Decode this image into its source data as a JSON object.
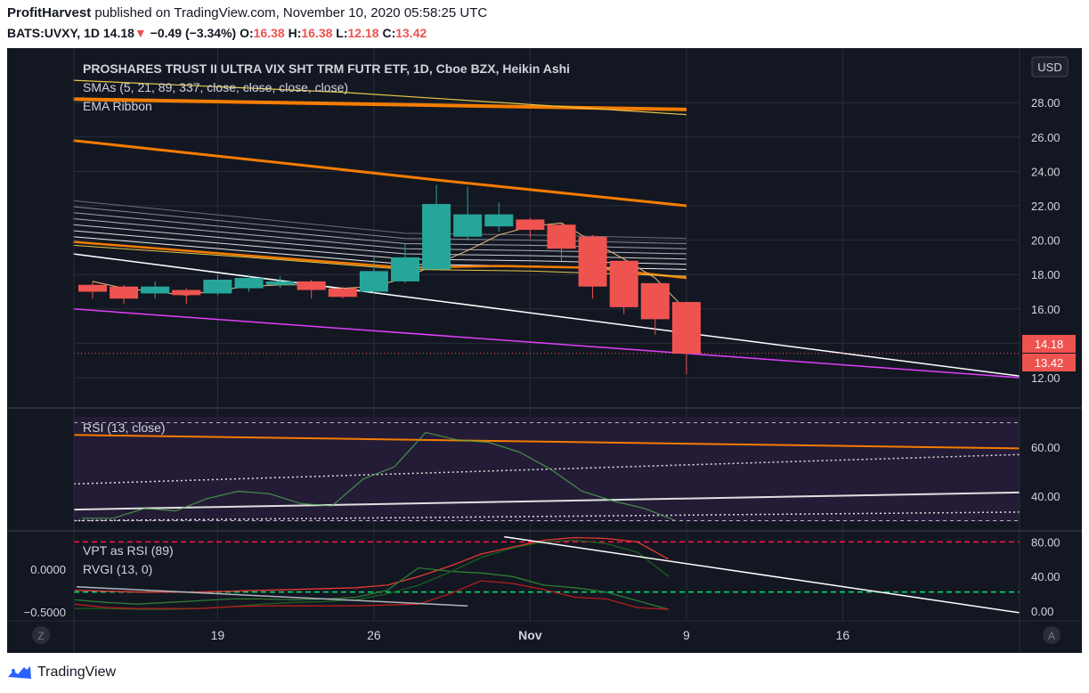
{
  "header": {
    "author": "ProfitHarvest",
    "published": "published on TradingView.com, November 10, 2020 05:58:25 UTC",
    "symbol": "BATS:UVXY, 1D",
    "last": "14.18",
    "change": "−0.49 (−3.34%)",
    "o_label": "O:",
    "o_value": "16.38",
    "h_label": "H:",
    "h_value": "16.38",
    "l_label": "L:",
    "l_value": "12.18",
    "c_label": "C:",
    "c_value": "13.42"
  },
  "legend": {
    "title": "PROSHARES TRUST II ULTRA VIX SHT TRM FUTR ETF, 1D, Cboe BZX, Heikin Ashi",
    "sma": "SMAs (5, 21, 89, 337, close, close, close, close)",
    "ema": "EMA Ribbon",
    "rsi": "RSI (13, close)",
    "vpt": "VPT as RSI (89)",
    "rvgi": "RVGI (13, 0)"
  },
  "currency_button": "USD",
  "price_tags": {
    "last": "14.18",
    "close": "13.42"
  },
  "footer": {
    "brand": "TradingView"
  },
  "corner_buttons": {
    "left": "Z",
    "right": "A"
  },
  "colors": {
    "bg": "#131722",
    "up": "#26a69a",
    "down": "#ef5350",
    "text": "#d1d4dc",
    "ema": "#f57c00",
    "magenta": "#e040fb",
    "rsi_fill": "#241c36"
  },
  "chart_data": [
    {
      "type": "candlestick",
      "title": "PROSHARES TRUST II ULTRA VIX SHT TRM FUTR ETF, 1D, Cboe BZX, Heikin Ashi",
      "x_ticks": [
        "19",
        "26",
        "Nov",
        "9",
        "16"
      ],
      "y_ticks": [
        "12.00",
        "14.00",
        "16.00",
        "18.00",
        "20.00",
        "22.00",
        "24.00",
        "26.00",
        "28.00"
      ],
      "ylim": [
        10.5,
        31.5
      ],
      "currency": "USD",
      "candles": [
        {
          "date": "2020-10-13",
          "o": 17.4,
          "h": 17.6,
          "l": 16.6,
          "c": 17.0
        },
        {
          "date": "2020-10-14",
          "o": 17.3,
          "h": 17.4,
          "l": 16.3,
          "c": 16.6
        },
        {
          "date": "2020-10-15",
          "o": 16.9,
          "h": 17.6,
          "l": 16.6,
          "c": 17.3
        },
        {
          "date": "2020-10-16",
          "o": 17.1,
          "h": 17.2,
          "l": 16.3,
          "c": 16.8
        },
        {
          "date": "2020-10-19",
          "o": 16.9,
          "h": 18.0,
          "l": 16.8,
          "c": 17.7
        },
        {
          "date": "2020-10-20",
          "o": 17.2,
          "h": 18.0,
          "l": 17.0,
          "c": 17.8
        },
        {
          "date": "2020-10-21",
          "o": 17.4,
          "h": 17.9,
          "l": 17.2,
          "c": 17.6
        },
        {
          "date": "2020-10-22",
          "o": 17.6,
          "h": 17.7,
          "l": 16.6,
          "c": 17.1
        },
        {
          "date": "2020-10-23",
          "o": 17.2,
          "h": 17.3,
          "l": 16.6,
          "c": 16.7
        },
        {
          "date": "2020-10-26",
          "o": 17.0,
          "h": 19.0,
          "l": 16.9,
          "c": 18.2
        },
        {
          "date": "2020-10-27",
          "o": 17.6,
          "h": 19.8,
          "l": 17.5,
          "c": 19.0
        },
        {
          "date": "2020-10-28",
          "o": 18.3,
          "h": 23.2,
          "l": 18.3,
          "c": 22.1
        },
        {
          "date": "2020-10-29",
          "o": 20.2,
          "h": 23.1,
          "l": 20.0,
          "c": 21.5
        },
        {
          "date": "2020-10-30",
          "o": 20.8,
          "h": 22.2,
          "l": 20.5,
          "c": 21.5
        },
        {
          "date": "2020-11-02",
          "o": 21.2,
          "h": 21.3,
          "l": 20.1,
          "c": 20.6
        },
        {
          "date": "2020-11-03",
          "o": 20.9,
          "h": 21.0,
          "l": 18.8,
          "c": 19.5
        },
        {
          "date": "2020-11-04",
          "o": 20.2,
          "h": 20.3,
          "l": 16.6,
          "c": 17.3
        },
        {
          "date": "2020-11-05",
          "o": 18.8,
          "h": 18.8,
          "l": 15.7,
          "c": 16.1
        },
        {
          "date": "2020-11-06",
          "o": 17.5,
          "h": 17.5,
          "l": 14.5,
          "c": 15.4
        },
        {
          "date": "2020-11-09",
          "o": 16.4,
          "h": 16.4,
          "l": 12.2,
          "c": 13.4
        }
      ],
      "indicators": [
        "SMAs (5, 21, 89, 337, close, close, close, close)",
        "EMA Ribbon"
      ],
      "last_price": 14.18,
      "close_price": 13.42
    },
    {
      "type": "line",
      "title": "RSI (13, close)",
      "y_ticks": [
        "40.00",
        "60.00"
      ],
      "ylim": [
        27,
        73
      ],
      "bands": [
        30,
        70
      ],
      "values": [
        31,
        31,
        35,
        34,
        39,
        42,
        41,
        37,
        36,
        47,
        52,
        66,
        63,
        62,
        58,
        51,
        42,
        38,
        35,
        30
      ]
    },
    {
      "type": "line",
      "title": "VPT as RSI (89) / RVGI (13, 0)",
      "y_ticks_right": [
        "0.00",
        "40.00",
        "80.00"
      ],
      "y_ticks_left": [
        "0.0000",
        "−0.5000"
      ],
      "ylim": [
        -2,
        86
      ],
      "levels": [
        80,
        22
      ],
      "series": [
        {
          "values": [
            24,
            23,
            22,
            22,
            22,
            23,
            24,
            25,
            26,
            27,
            30,
            40,
            52,
            66,
            74,
            82,
            85,
            84,
            80,
            60
          ]
        },
        {
          "values": [
            13,
            10,
            8,
            10,
            12,
            14,
            14,
            13,
            14,
            16,
            24,
            50,
            46,
            44,
            40,
            30,
            27,
            22,
            12,
            2
          ]
        },
        {
          "values": [
            3,
            3,
            2,
            2,
            3,
            5,
            8,
            10,
            11,
            13,
            20,
            30,
            45,
            62,
            73,
            80,
            82,
            78,
            68,
            40
          ]
        },
        {
          "values": [
            8,
            4,
            3,
            3,
            3,
            5,
            6,
            6,
            6,
            6,
            7,
            8,
            20,
            35,
            32,
            25,
            16,
            14,
            4,
            2
          ]
        }
      ]
    }
  ]
}
